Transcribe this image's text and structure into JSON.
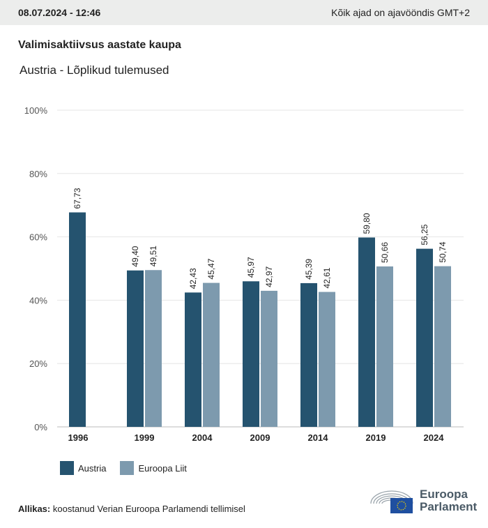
{
  "header": {
    "datetime": "08.07.2024 - 12:46",
    "timezone_note": "Kõik ajad on ajavööndis GMT+2"
  },
  "title": "Valimisaktiivsus aastate kaupa",
  "subtitle": "Austria - Lõplikud tulemused",
  "chart_data": {
    "type": "bar",
    "categories": [
      "1996",
      "1999",
      "2004",
      "2009",
      "2014",
      "2019",
      "2024"
    ],
    "series": [
      {
        "name": "Austria",
        "color": "#25536f",
        "values": [
          67.73,
          49.4,
          42.43,
          45.97,
          45.39,
          59.8,
          56.25
        ],
        "labels": [
          "67,73",
          "49,40",
          "42,43",
          "45,97",
          "45,39",
          "59,80",
          "56,25"
        ]
      },
      {
        "name": "Euroopa Liit",
        "color": "#7d9aae",
        "values": [
          null,
          49.51,
          45.47,
          42.97,
          42.61,
          50.66,
          50.74
        ],
        "labels": [
          null,
          "49,51",
          "45,47",
          "42,97",
          "42,61",
          "50,66",
          "50,74"
        ]
      }
    ],
    "ylim": [
      0,
      100
    ],
    "yticks": [
      0,
      20,
      40,
      60,
      80,
      100
    ],
    "ytick_labels": [
      "0%",
      "20%",
      "40%",
      "60%",
      "80%",
      "100%"
    ],
    "grid": true,
    "legend": "bottom-left"
  },
  "source": {
    "label": "Allikas:",
    "text": "koostanud Verian Euroopa Parlamendi tellimisel"
  },
  "logo": {
    "line1": "Euroopa",
    "line2": "Parlament"
  }
}
